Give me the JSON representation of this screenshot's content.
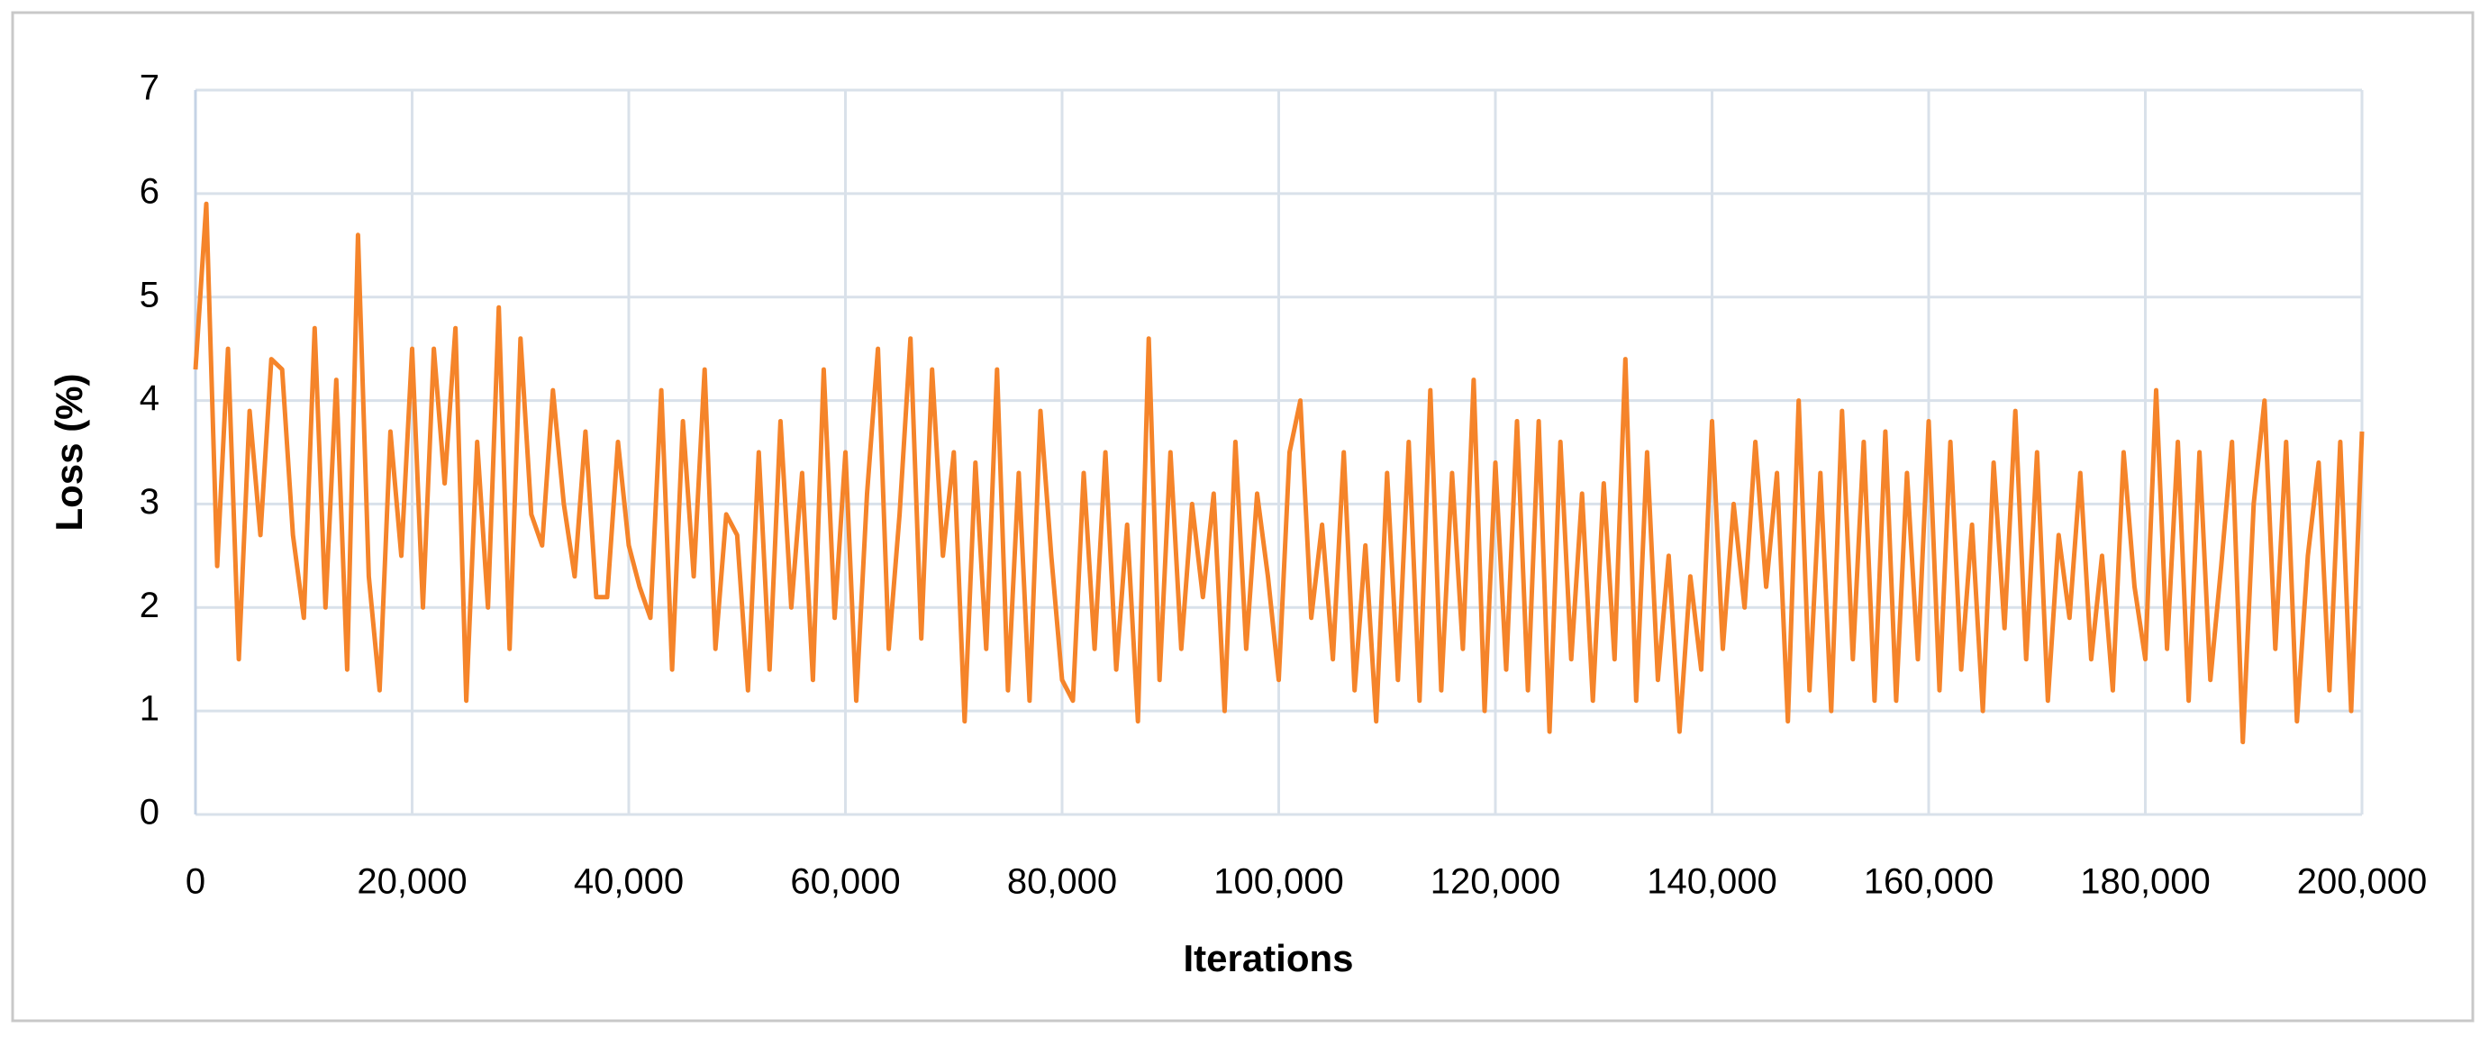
{
  "chart_data": {
    "type": "line",
    "xlabel": "Iterations",
    "ylabel": "Loss (%)",
    "xlim": [
      0,
      200000
    ],
    "ylim": [
      0,
      7
    ],
    "xticks": [
      0,
      {
        "value": 20000,
        "label": "20,000"
      },
      {
        "value": 40000,
        "label": "40,000"
      },
      {
        "value": 60000,
        "label": "60,000"
      },
      {
        "value": 80000,
        "label": "80,000"
      },
      {
        "value": 100000,
        "label": "100,000"
      },
      {
        "value": 120000,
        "label": "120,000"
      },
      {
        "value": 140000,
        "label": "140,000"
      },
      {
        "value": 160000,
        "label": "160,000"
      },
      {
        "value": 180000,
        "label": "180,000"
      },
      {
        "value": 200000,
        "label": "200,000"
      }
    ],
    "yticks": [
      0,
      1,
      2,
      3,
      4,
      5,
      6,
      7
    ],
    "grid": true,
    "x": [
      0,
      1000,
      2000,
      3000,
      4000,
      5000,
      6000,
      7000,
      8000,
      9000,
      10000,
      11000,
      12000,
      13000,
      14000,
      15000,
      16000,
      17000,
      18000,
      19000,
      20000,
      21000,
      22000,
      23000,
      24000,
      25000,
      26000,
      27000,
      28000,
      29000,
      30000,
      31000,
      32000,
      33000,
      34000,
      35000,
      36000,
      37000,
      38000,
      39000,
      40000,
      41000,
      42000,
      43000,
      44000,
      45000,
      46000,
      47000,
      48000,
      49000,
      50000,
      51000,
      52000,
      53000,
      54000,
      55000,
      56000,
      57000,
      58000,
      59000,
      60000,
      61000,
      62000,
      63000,
      64000,
      65000,
      66000,
      67000,
      68000,
      69000,
      70000,
      71000,
      72000,
      73000,
      74000,
      75000,
      76000,
      77000,
      78000,
      79000,
      80000,
      81000,
      82000,
      83000,
      84000,
      85000,
      86000,
      87000,
      88000,
      89000,
      90000,
      91000,
      92000,
      93000,
      94000,
      95000,
      96000,
      97000,
      98000,
      99000,
      100000,
      101000,
      102000,
      103000,
      104000,
      105000,
      106000,
      107000,
      108000,
      109000,
      110000,
      111000,
      112000,
      113000,
      114000,
      115000,
      116000,
      117000,
      118000,
      119000,
      120000,
      121000,
      122000,
      123000,
      124000,
      125000,
      126000,
      127000,
      128000,
      129000,
      130000,
      131000,
      132000,
      133000,
      134000,
      135000,
      136000,
      137000,
      138000,
      139000,
      140000,
      141000,
      142000,
      143000,
      144000,
      145000,
      146000,
      147000,
      148000,
      149000,
      150000,
      151000,
      152000,
      153000,
      154000,
      155000,
      156000,
      157000,
      158000,
      159000,
      160000,
      161000,
      162000,
      163000,
      164000,
      165000,
      166000,
      167000,
      168000,
      169000,
      170000,
      171000,
      172000,
      173000,
      174000,
      175000,
      176000,
      177000,
      178000,
      179000,
      180000,
      181000,
      182000,
      183000,
      184000,
      185000,
      186000,
      187000,
      188000,
      189000,
      190000,
      191000,
      192000,
      193000,
      194000,
      195000,
      196000,
      197000,
      198000,
      199000,
      200000
    ],
    "series": [
      {
        "color": "#f5842a",
        "values": [
          4.3,
          5.9,
          2.4,
          4.5,
          1.5,
          3.9,
          2.7,
          4.4,
          4.3,
          2.7,
          1.9,
          4.7,
          2.0,
          4.2,
          1.4,
          5.6,
          2.3,
          1.2,
          3.7,
          2.5,
          4.5,
          2.0,
          4.5,
          3.2,
          4.7,
          1.1,
          3.6,
          2.0,
          4.9,
          1.6,
          4.6,
          2.9,
          2.6,
          4.1,
          3.0,
          2.3,
          3.7,
          2.1,
          2.1,
          3.6,
          2.6,
          2.2,
          1.9,
          4.1,
          1.4,
          3.8,
          2.3,
          4.3,
          1.6,
          2.9,
          2.7,
          1.2,
          3.5,
          1.4,
          3.8,
          2.0,
          3.3,
          1.3,
          4.3,
          1.9,
          3.5,
          1.1,
          3.1,
          4.5,
          1.6,
          2.9,
          4.6,
          1.7,
          4.3,
          2.5,
          3.5,
          0.9,
          3.4,
          1.6,
          4.3,
          1.2,
          3.3,
          1.1,
          3.9,
          2.5,
          1.3,
          1.1,
          3.3,
          1.6,
          3.5,
          1.4,
          2.8,
          0.9,
          4.6,
          1.3,
          3.5,
          1.6,
          3.0,
          2.1,
          3.1,
          1.0,
          3.6,
          1.6,
          3.1,
          2.3,
          1.3,
          3.5,
          4.0,
          1.9,
          2.8,
          1.5,
          3.5,
          1.2,
          2.6,
          0.9,
          3.3,
          1.3,
          3.6,
          1.1,
          4.1,
          1.2,
          3.3,
          1.6,
          4.2,
          1.0,
          3.4,
          1.4,
          3.8,
          1.2,
          3.8,
          0.8,
          3.6,
          1.5,
          3.1,
          1.1,
          3.2,
          1.5,
          4.4,
          1.1,
          3.5,
          1.3,
          2.5,
          0.8,
          2.3,
          1.4,
          3.8,
          1.6,
          3.0,
          2.0,
          3.6,
          2.2,
          3.3,
          0.9,
          4.0,
          1.2,
          3.3,
          1.0,
          3.9,
          1.5,
          3.6,
          1.1,
          3.7,
          1.1,
          3.3,
          1.5,
          3.8,
          1.2,
          3.6,
          1.4,
          2.8,
          1.0,
          3.4,
          1.8,
          3.9,
          1.5,
          3.5,
          1.1,
          2.7,
          1.9,
          3.3,
          1.5,
          2.5,
          1.2,
          3.5,
          2.2,
          1.5,
          4.1,
          1.6,
          3.6,
          1.1,
          3.5,
          1.3,
          2.4,
          3.6,
          0.7,
          3.0,
          4.0,
          1.6,
          3.6,
          0.9,
          2.5,
          3.4,
          1.2,
          3.6,
          1.0,
          3.7
        ]
      }
    ]
  }
}
